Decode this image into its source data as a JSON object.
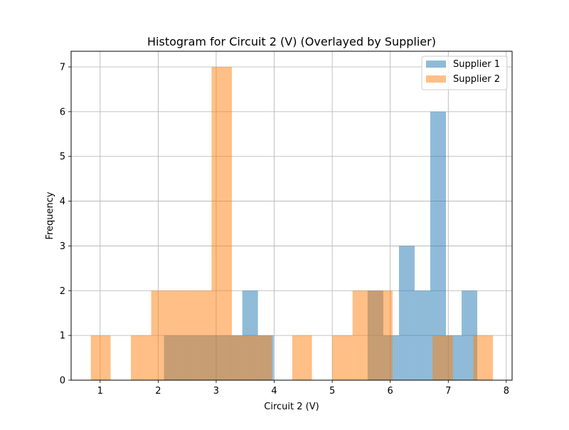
{
  "chart_data": {
    "type": "bar",
    "subtype": "overlaid-histogram",
    "title": "Histogram for Circuit 2 (V) (Overlayed by Supplier)",
    "xlabel": "Circuit 2 (V)",
    "ylabel": "Frequency",
    "xlim": [
      0.5,
      8.1
    ],
    "ylim": [
      0,
      7.35
    ],
    "xticks": [
      1,
      2,
      3,
      4,
      5,
      6,
      7,
      8
    ],
    "yticks": [
      0,
      1,
      2,
      3,
      4,
      5,
      6,
      7
    ],
    "grid": true,
    "legend": {
      "position": "top-right"
    },
    "series": [
      {
        "name": "Supplier 1",
        "color": "#1f77b4",
        "alpha": 0.5,
        "bins": [
          {
            "x0": 2.1,
            "x1": 2.37,
            "count": 1
          },
          {
            "x0": 2.37,
            "x1": 2.64,
            "count": 1
          },
          {
            "x0": 2.64,
            "x1": 2.91,
            "count": 1
          },
          {
            "x0": 2.91,
            "x1": 3.18,
            "count": 1
          },
          {
            "x0": 3.18,
            "x1": 3.45,
            "count": 1
          },
          {
            "x0": 3.45,
            "x1": 3.72,
            "count": 2
          },
          {
            "x0": 3.72,
            "x1": 3.99,
            "count": 1
          },
          {
            "x0": 5.61,
            "x1": 5.88,
            "count": 2
          },
          {
            "x0": 5.88,
            "x1": 6.15,
            "count": 1
          },
          {
            "x0": 6.15,
            "x1": 6.42,
            "count": 3
          },
          {
            "x0": 6.42,
            "x1": 6.69,
            "count": 2
          },
          {
            "x0": 6.69,
            "x1": 6.96,
            "count": 6
          },
          {
            "x0": 6.96,
            "x1": 7.23,
            "count": 1
          },
          {
            "x0": 7.23,
            "x1": 7.5,
            "count": 2
          }
        ]
      },
      {
        "name": "Supplier 2",
        "color": "#ff7f0e",
        "alpha": 0.5,
        "bins": [
          {
            "x0": 0.84,
            "x1": 1.18,
            "count": 1
          },
          {
            "x0": 1.53,
            "x1": 1.88,
            "count": 1
          },
          {
            "x0": 1.88,
            "x1": 2.23,
            "count": 2
          },
          {
            "x0": 2.23,
            "x1": 2.57,
            "count": 2
          },
          {
            "x0": 2.57,
            "x1": 2.92,
            "count": 2
          },
          {
            "x0": 2.92,
            "x1": 3.27,
            "count": 7
          },
          {
            "x0": 3.27,
            "x1": 3.61,
            "count": 1
          },
          {
            "x0": 3.61,
            "x1": 3.96,
            "count": 1
          },
          {
            "x0": 4.31,
            "x1": 4.65,
            "count": 1
          },
          {
            "x0": 5.0,
            "x1": 5.35,
            "count": 1
          },
          {
            "x0": 5.35,
            "x1": 5.69,
            "count": 2
          },
          {
            "x0": 5.69,
            "x1": 6.04,
            "count": 2
          },
          {
            "x0": 6.73,
            "x1": 7.08,
            "count": 1
          },
          {
            "x0": 7.43,
            "x1": 7.77,
            "count": 1
          }
        ]
      }
    ]
  }
}
